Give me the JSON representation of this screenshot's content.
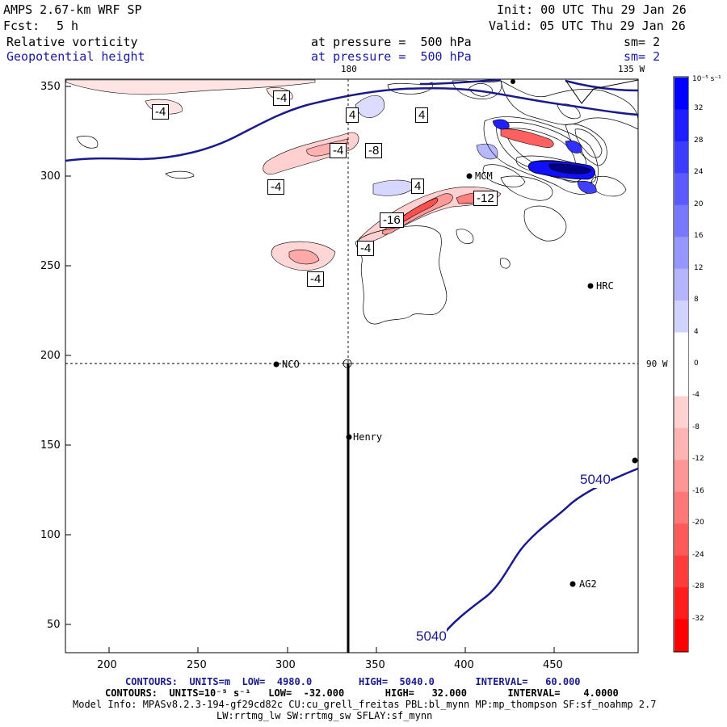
{
  "header": {
    "model": "AMPS 2.67-km WRF SP",
    "fcst_label": "Fcst:",
    "fcst_value": "5 h",
    "init": "Init: 00 UTC Thu 29 Jan 26",
    "valid": "Valid: 05 UTC Thu 29 Jan 26",
    "field1": "Relative vorticity",
    "field1_level": "at pressure =  500 hPa",
    "field1_sm": "sm= 2",
    "field2": "Geopotential height",
    "field2_level": "at pressure =  500 hPa",
    "field2_sm": "sm= 2"
  },
  "map": {
    "x_ticks": [
      "200",
      "250",
      "300",
      "350",
      "400",
      "450"
    ],
    "y_ticks": [
      "350",
      "300",
      "250",
      "200",
      "150",
      "100",
      "50"
    ],
    "lon_labels": {
      "top_180": "180",
      "top_135w": "135 W",
      "right_90w": "90 W"
    },
    "stations": [
      "NCO",
      "Henry",
      "HRC",
      "AG2",
      "MCM"
    ],
    "vorticity_labels": [
      "-4",
      "-4",
      "4",
      "4",
      "-4",
      "-8",
      "-4",
      "4",
      "-12",
      "-16",
      "-4",
      "-4"
    ],
    "height_labels": [
      "5040",
      "5040"
    ]
  },
  "colorbar": {
    "unit": "10⁻⁵ s⁻¹",
    "labels": [
      "32",
      "28",
      "24",
      "20",
      "16",
      "12",
      "8",
      "4",
      "0",
      "-4",
      "-8",
      "-12",
      "-16",
      "-20",
      "-24",
      "-28",
      "-32"
    ],
    "colors_blue_to_red": [
      "#0000ff",
      "#1e1eff",
      "#3c3cff",
      "#5a5aff",
      "#7878ff",
      "#9696ff",
      "#b4b4ff",
      "#d2d2ff",
      "#ffffff",
      "#ffffff",
      "#ffd2d2",
      "#ffb4b4",
      "#ff9696",
      "#ff7878",
      "#ff5a5a",
      "#ff3c3c",
      "#ff1e1e",
      "#ff0000"
    ]
  },
  "footer": {
    "contours1": "CONTOURS:  UNITS=m  LOW=  4980.0        HIGH=  5040.0       INTERVAL=   60.000",
    "contours2": "CONTOURS:  UNITS=10⁻⁵ s⁻¹   LOW=  -32.000       HIGH=   32.000       INTERVAL=    4.0000",
    "model_info": "Model Info: MPASv8.2.3-194-gf29cd82c CU:cu_grell_freitas PBL:bl_mynn MP:mp_thompson SF:sf_noahmp 2.7",
    "model_info2": "LW:rrtmg_lw SW:rrtmg_sw SFLAY:sf_mynn"
  }
}
